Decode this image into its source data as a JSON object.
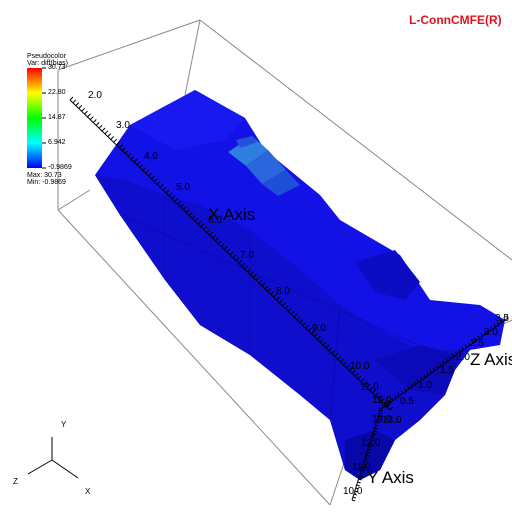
{
  "brand": {
    "text": "L-ConnCMFE(R)",
    "color": "#e0141e"
  },
  "legend": {
    "title": "Pseudocolor",
    "variable": "Var: diff(bias)",
    "max_label": "Max: 30.73",
    "min_label": "Min: -0.9869",
    "ticks": [
      "30.73",
      "22.80",
      "14.87",
      "6.942",
      "-0.9869"
    ],
    "colormap": [
      "#ff0000",
      "#ffff00",
      "#00ff00",
      "#00ffff",
      "#0000ff"
    ]
  },
  "axes": {
    "x": {
      "title": "X Axis",
      "ticks": [
        "2.0",
        "3.0",
        "4.0",
        "5.0",
        "6.0",
        "7.0",
        "8.0",
        "9.0",
        "10.0",
        "11.0",
        "12.0",
        "13.0"
      ]
    },
    "y": {
      "title": "Y Axis",
      "ticks": [
        "10.0",
        "11.0",
        "12.0",
        "13.0"
      ]
    },
    "z": {
      "title": "Z Axis",
      "ticks": [
        "0.5",
        "1.0",
        "1.5",
        "2.0",
        "2.5",
        "3.0",
        "3.5"
      ]
    }
  },
  "triad": {
    "x": "X",
    "y": "Y",
    "z": "Z"
  },
  "colors": {
    "surface": "#1010e8",
    "surface_dark": "#0a0ac0",
    "highlight": "#2a6ee0"
  }
}
